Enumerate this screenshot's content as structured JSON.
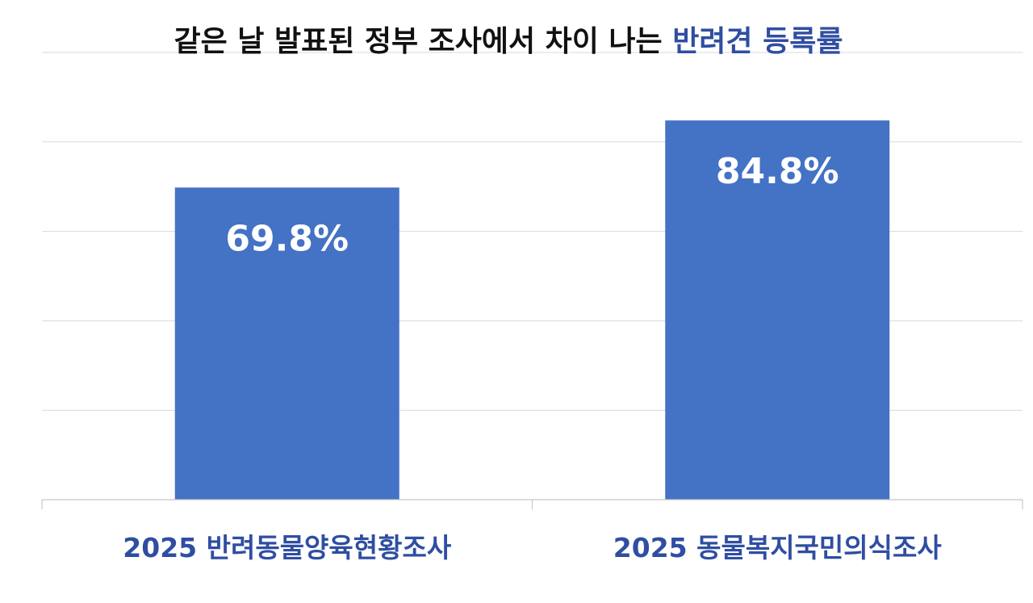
{
  "title": {
    "prefix": "같은 날 발표된 정부 조사에서 차이 나는 ",
    "highlight": "반려견 등록률"
  },
  "colors": {
    "bar": "#4472C4",
    "title": "#111111",
    "title_highlight": "#2F4EA2",
    "category_label": "#2F4EA2",
    "data_label": "#ffffff",
    "grid": "#d9d9d9",
    "axis": "#c8c8c8"
  },
  "chart_data": {
    "type": "bar",
    "title": "같은 날 발표된 정부 조사에서 차이 나는 반려견 등록률",
    "categories": [
      "2025 반려동물양육현황조사",
      "2025 동물복지국민의식조사"
    ],
    "values": [
      69.8,
      84.8
    ],
    "data_labels": [
      "69.8%",
      "84.8%"
    ],
    "ylim": [
      0,
      100
    ],
    "grid": true,
    "legend": "none"
  }
}
